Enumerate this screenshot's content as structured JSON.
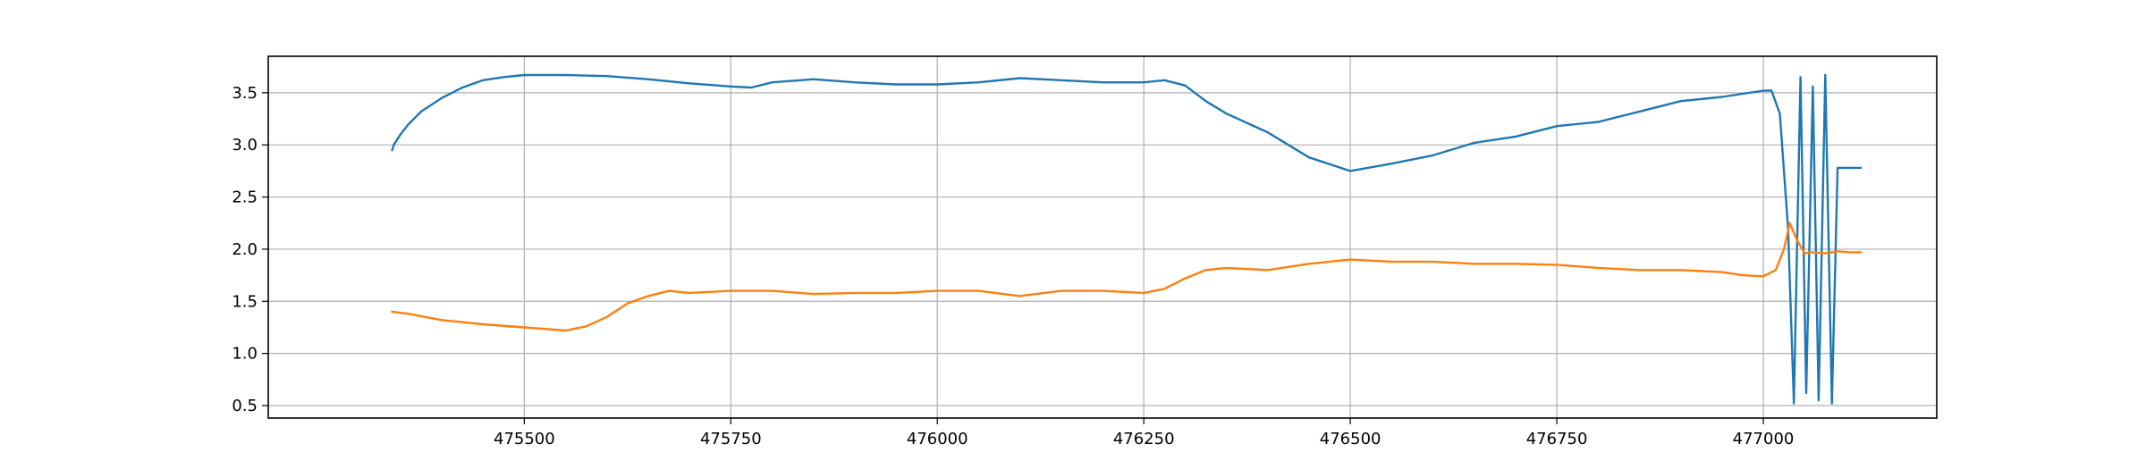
{
  "chart_data": {
    "type": "line",
    "title": "",
    "xlabel": "",
    "ylabel": "",
    "xlim": [
      475190,
      477210
    ],
    "ylim": [
      0.38,
      3.85
    ],
    "grid": true,
    "x_ticks": [
      475500,
      475750,
      476000,
      476250,
      476500,
      476750,
      477000
    ],
    "x_tick_labels": [
      "475500",
      "475750",
      "476000",
      "476250",
      "476500",
      "476750",
      "477000"
    ],
    "y_ticks": [
      0.5,
      1.0,
      1.5,
      2.0,
      2.5,
      3.0,
      3.5
    ],
    "y_tick_labels": [
      "0.5",
      "1.0",
      "1.5",
      "2.0",
      "2.5",
      "3.0",
      "3.5"
    ],
    "series": [
      {
        "color": "#1f77b4",
        "x": [
          475340,
          475342,
          475350,
          475360,
          475375,
          475400,
          475425,
          475450,
          475475,
          475500,
          475550,
          475600,
          475650,
          475700,
          475750,
          475775,
          475800,
          475850,
          475900,
          475950,
          476000,
          476050,
          476100,
          476150,
          476200,
          476250,
          476275,
          476300,
          476325,
          476350,
          476400,
          476450,
          476500,
          476550,
          476600,
          476650,
          476700,
          476750,
          476800,
          476850,
          476900,
          476950,
          477000,
          477010,
          477020,
          477030,
          477037,
          477045,
          477052,
          477060,
          477067,
          477075,
          477083,
          477090,
          477097,
          477105,
          477112,
          477118
        ],
        "y": [
          2.95,
          3.0,
          3.1,
          3.2,
          3.32,
          3.45,
          3.55,
          3.62,
          3.65,
          3.67,
          3.67,
          3.66,
          3.63,
          3.59,
          3.56,
          3.55,
          3.6,
          3.63,
          3.6,
          3.58,
          3.58,
          3.6,
          3.64,
          3.62,
          3.6,
          3.6,
          3.62,
          3.57,
          3.42,
          3.3,
          3.12,
          2.88,
          2.75,
          2.82,
          2.9,
          3.02,
          3.08,
          3.18,
          3.22,
          3.32,
          3.42,
          3.46,
          3.52,
          3.52,
          3.3,
          2.2,
          0.52,
          3.65,
          0.62,
          3.56,
          0.55,
          3.67,
          0.52,
          2.78,
          2.78,
          2.78,
          2.78,
          2.78
        ]
      },
      {
        "color": "#ff7f0e",
        "x": [
          475340,
          475360,
          475400,
          475450,
          475500,
          475550,
          475575,
          475600,
          475625,
          475650,
          475675,
          475700,
          475750,
          475800,
          475850,
          475900,
          475950,
          476000,
          476050,
          476100,
          476150,
          476200,
          476250,
          476275,
          476300,
          476325,
          476350,
          476400,
          476450,
          476500,
          476550,
          476600,
          476650,
          476700,
          476750,
          476800,
          476850,
          476900,
          476950,
          476975,
          477000,
          477015,
          477025,
          477032,
          477040,
          477050,
          477060,
          477075,
          477090,
          477105,
          477118
        ],
        "y": [
          1.4,
          1.38,
          1.32,
          1.28,
          1.25,
          1.22,
          1.26,
          1.35,
          1.48,
          1.55,
          1.6,
          1.58,
          1.6,
          1.6,
          1.57,
          1.58,
          1.58,
          1.6,
          1.6,
          1.55,
          1.6,
          1.6,
          1.58,
          1.62,
          1.72,
          1.8,
          1.82,
          1.8,
          1.86,
          1.9,
          1.88,
          1.88,
          1.86,
          1.86,
          1.85,
          1.82,
          1.8,
          1.8,
          1.78,
          1.75,
          1.74,
          1.8,
          2.0,
          2.25,
          2.1,
          1.96,
          1.97,
          1.96,
          1.98,
          1.97,
          1.97
        ]
      }
    ]
  }
}
